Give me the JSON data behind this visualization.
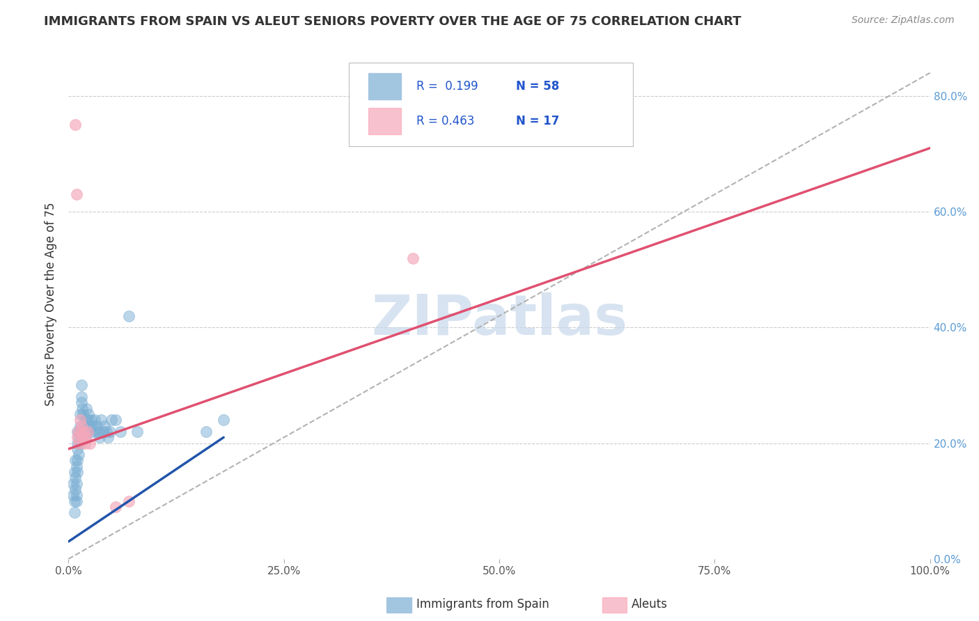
{
  "title": "IMMIGRANTS FROM SPAIN VS ALEUT SENIORS POVERTY OVER THE AGE OF 75 CORRELATION CHART",
  "source": "Source: ZipAtlas.com",
  "ylabel": "Seniors Poverty Over the Age of 75",
  "xlim": [
    0,
    1.0
  ],
  "ylim": [
    0,
    0.88
  ],
  "xticks": [
    0.0,
    0.25,
    0.5,
    0.75,
    1.0
  ],
  "xtick_labels": [
    "0.0%",
    "25.0%",
    "50.0%",
    "75.0%",
    "100.0%"
  ],
  "ytick_labels": [
    "0.0%",
    "20.0%",
    "40.0%",
    "60.0%",
    "80.0%"
  ],
  "yticks": [
    0.0,
    0.2,
    0.4,
    0.6,
    0.8
  ],
  "watermark": "ZIPatlas",
  "blue_color": "#7BAFD4",
  "pink_color": "#F4A7B9",
  "blue_scatter": [
    [
      0.005,
      0.13
    ],
    [
      0.005,
      0.11
    ],
    [
      0.007,
      0.1
    ],
    [
      0.007,
      0.08
    ],
    [
      0.007,
      0.15
    ],
    [
      0.008,
      0.17
    ],
    [
      0.008,
      0.14
    ],
    [
      0.008,
      0.12
    ],
    [
      0.009,
      0.16
    ],
    [
      0.009,
      0.13
    ],
    [
      0.009,
      0.11
    ],
    [
      0.009,
      0.1
    ],
    [
      0.01,
      0.19
    ],
    [
      0.01,
      0.17
    ],
    [
      0.01,
      0.15
    ],
    [
      0.01,
      0.22
    ],
    [
      0.01,
      0.2
    ],
    [
      0.012,
      0.18
    ],
    [
      0.012,
      0.21
    ],
    [
      0.013,
      0.23
    ],
    [
      0.013,
      0.25
    ],
    [
      0.013,
      0.22
    ],
    [
      0.014,
      0.2
    ],
    [
      0.015,
      0.27
    ],
    [
      0.015,
      0.3
    ],
    [
      0.015,
      0.28
    ],
    [
      0.016,
      0.26
    ],
    [
      0.017,
      0.25
    ],
    [
      0.018,
      0.23
    ],
    [
      0.019,
      0.21
    ],
    [
      0.02,
      0.24
    ],
    [
      0.02,
      0.22
    ],
    [
      0.021,
      0.26
    ],
    [
      0.022,
      0.24
    ],
    [
      0.022,
      0.22
    ],
    [
      0.023,
      0.25
    ],
    [
      0.025,
      0.23
    ],
    [
      0.026,
      0.24
    ],
    [
      0.027,
      0.22
    ],
    [
      0.028,
      0.23
    ],
    [
      0.03,
      0.24
    ],
    [
      0.032,
      0.22
    ],
    [
      0.033,
      0.23
    ],
    [
      0.035,
      0.22
    ],
    [
      0.036,
      0.21
    ],
    [
      0.038,
      0.24
    ],
    [
      0.04,
      0.22
    ],
    [
      0.042,
      0.23
    ],
    [
      0.044,
      0.22
    ],
    [
      0.046,
      0.21
    ],
    [
      0.048,
      0.22
    ],
    [
      0.05,
      0.24
    ],
    [
      0.055,
      0.24
    ],
    [
      0.06,
      0.22
    ],
    [
      0.07,
      0.42
    ],
    [
      0.08,
      0.22
    ],
    [
      0.16,
      0.22
    ],
    [
      0.18,
      0.24
    ]
  ],
  "pink_scatter": [
    [
      0.008,
      0.75
    ],
    [
      0.009,
      0.63
    ],
    [
      0.01,
      0.21
    ],
    [
      0.011,
      0.22
    ],
    [
      0.012,
      0.2
    ],
    [
      0.013,
      0.24
    ],
    [
      0.014,
      0.22
    ],
    [
      0.015,
      0.23
    ],
    [
      0.016,
      0.21
    ],
    [
      0.018,
      0.22
    ],
    [
      0.019,
      0.2
    ],
    [
      0.02,
      0.21
    ],
    [
      0.022,
      0.22
    ],
    [
      0.025,
      0.2
    ],
    [
      0.055,
      0.09
    ],
    [
      0.4,
      0.52
    ],
    [
      0.07,
      0.1
    ]
  ],
  "blue_line": [
    0.0,
    0.03,
    0.18,
    0.21
  ],
  "pink_line": [
    0.0,
    0.19,
    1.0,
    0.71
  ],
  "dashed_line": [
    0.0,
    0.0,
    1.0,
    0.84
  ],
  "grid_color": "#CCCCCC",
  "right_tick_color": "#5B9BD5",
  "title_fontsize": 13,
  "source_fontsize": 10,
  "tick_fontsize": 11,
  "ylabel_fontsize": 12,
  "legend_fontsize": 12
}
